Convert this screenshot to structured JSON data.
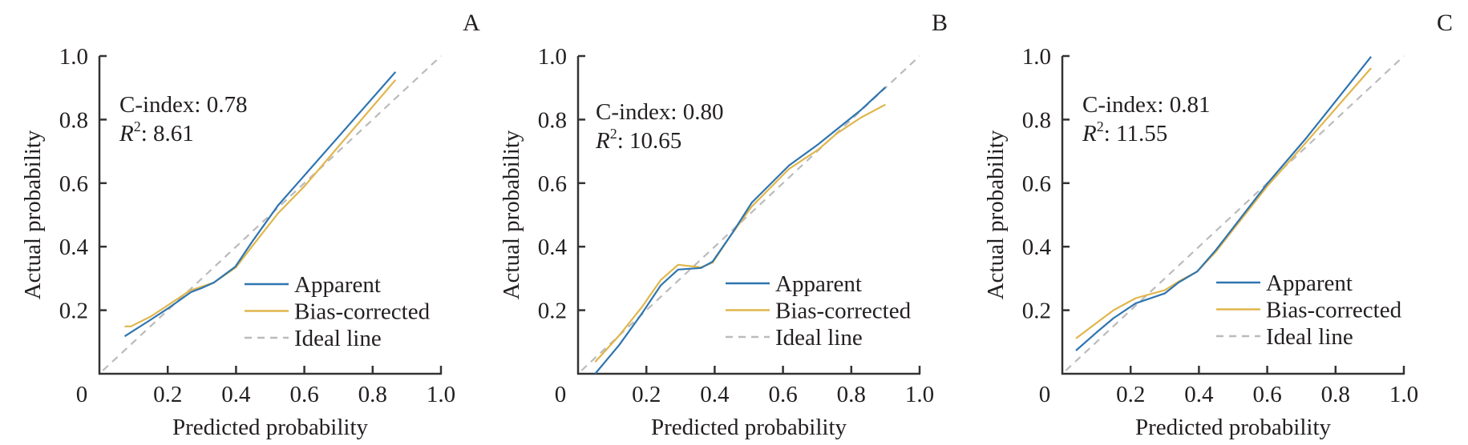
{
  "colors": {
    "apparent": "#2e75b0",
    "bias_corrected": "#e0b64c",
    "ideal": "#bbbbbb",
    "axis": "#333333"
  },
  "legend": [
    "Apparent",
    "Bias-corrected",
    "Ideal line"
  ],
  "chart_data": [
    {
      "type": "line",
      "panel": "A",
      "xlabel": "Predicted probability",
      "ylabel": "Actual probability",
      "xlim": [
        0,
        1.0
      ],
      "ylim": [
        0,
        1.0
      ],
      "xticks": [
        "0.2",
        "0.4",
        "0.6",
        "0.8",
        "1.0"
      ],
      "yticks": [
        "0.2",
        "0.4",
        "0.6",
        "0.8",
        "1.0"
      ],
      "origin_label": "0",
      "annotation": {
        "cindex": "C-index: 0.78",
        "r2_symbol": "R",
        "r2_sup": "2",
        "r2_value": ": 8.61"
      },
      "legend_position": "bottom-right",
      "series": [
        {
          "name": "Apparent",
          "points": [
            [
              0.074,
              0.118
            ],
            [
              0.15,
              0.17
            ],
            [
              0.2,
              0.205
            ],
            [
              0.268,
              0.257
            ],
            [
              0.3,
              0.27
            ],
            [
              0.335,
              0.287
            ],
            [
              0.398,
              0.337
            ],
            [
              0.45,
              0.42
            ],
            [
              0.523,
              0.53
            ],
            [
              0.6,
              0.624
            ],
            [
              0.7,
              0.746
            ],
            [
              0.867,
              0.95
            ]
          ]
        },
        {
          "name": "Bias-corrected",
          "points": [
            [
              0.074,
              0.149
            ],
            [
              0.092,
              0.149
            ],
            [
              0.15,
              0.18
            ],
            [
              0.2,
              0.215
            ],
            [
              0.265,
              0.262
            ],
            [
              0.335,
              0.287
            ],
            [
              0.4,
              0.335
            ],
            [
              0.45,
              0.405
            ],
            [
              0.523,
              0.505
            ],
            [
              0.6,
              0.59
            ],
            [
              0.867,
              0.925
            ]
          ]
        },
        {
          "name": "Ideal line",
          "points": [
            [
              0.01,
              0.01
            ],
            [
              1.0,
              1.0
            ]
          ]
        }
      ]
    },
    {
      "type": "line",
      "panel": "B",
      "xlabel": "Predicted probability",
      "ylabel": "Actual probability",
      "xlim": [
        0,
        1.0
      ],
      "ylim": [
        0,
        1.0
      ],
      "xticks": [
        "0.2",
        "0.4",
        "0.6",
        "0.8",
        "1.0"
      ],
      "yticks": [
        "0.2",
        "0.4",
        "0.6",
        "0.8",
        "1.0"
      ],
      "origin_label": "0",
      "annotation": {
        "cindex": "C-index: 0.80",
        "r2_symbol": "R",
        "r2_sup": "2",
        "r2_value": ": 10.65"
      },
      "legend_position": "bottom-right",
      "series": [
        {
          "name": "Apparent",
          "points": [
            [
              0.05,
              0.0
            ],
            [
              0.12,
              0.09
            ],
            [
              0.187,
              0.19
            ],
            [
              0.242,
              0.278
            ],
            [
              0.293,
              0.328
            ],
            [
              0.36,
              0.333
            ],
            [
              0.394,
              0.353
            ],
            [
              0.45,
              0.44
            ],
            [
              0.509,
              0.539
            ],
            [
              0.618,
              0.656
            ],
            [
              0.704,
              0.723
            ],
            [
              0.828,
              0.83
            ],
            [
              0.9,
              0.902
            ]
          ]
        },
        {
          "name": "Bias-corrected",
          "points": [
            [
              0.05,
              0.037
            ],
            [
              0.12,
              0.12
            ],
            [
              0.187,
              0.21
            ],
            [
              0.242,
              0.295
            ],
            [
              0.293,
              0.343
            ],
            [
              0.36,
              0.335
            ],
            [
              0.394,
              0.35
            ],
            [
              0.45,
              0.44
            ],
            [
              0.509,
              0.527
            ],
            [
              0.618,
              0.645
            ],
            [
              0.704,
              0.706
            ],
            [
              0.757,
              0.756
            ],
            [
              0.828,
              0.806
            ],
            [
              0.9,
              0.847
            ]
          ]
        },
        {
          "name": "Ideal line",
          "points": [
            [
              0.01,
              0.01
            ],
            [
              1.0,
              1.0
            ]
          ]
        }
      ]
    },
    {
      "type": "line",
      "panel": "C",
      "xlabel": "Predicted probability",
      "ylabel": "Actual probability",
      "xlim": [
        0,
        1.0
      ],
      "ylim": [
        0,
        1.0
      ],
      "xticks": [
        "0.2",
        "0.4",
        "0.6",
        "0.8",
        "1.0"
      ],
      "yticks": [
        "0.2",
        "0.4",
        "0.6",
        "0.8",
        "1.0"
      ],
      "origin_label": "0",
      "annotation": {
        "cindex": "C-index: 0.81",
        "r2_symbol": "R",
        "r2_sup": "2",
        "r2_value": ": 11.55"
      },
      "legend_position": "bottom-right",
      "series": [
        {
          "name": "Apparent",
          "points": [
            [
              0.04,
              0.073
            ],
            [
              0.1,
              0.13
            ],
            [
              0.15,
              0.175
            ],
            [
              0.215,
              0.222
            ],
            [
              0.3,
              0.253
            ],
            [
              0.34,
              0.287
            ],
            [
              0.395,
              0.322
            ],
            [
              0.45,
              0.39
            ],
            [
              0.599,
              0.597
            ],
            [
              0.716,
              0.744
            ],
            [
              0.904,
              0.998
            ]
          ]
        },
        {
          "name": "Bias-corrected",
          "points": [
            [
              0.04,
              0.111
            ],
            [
              0.1,
              0.16
            ],
            [
              0.15,
              0.2
            ],
            [
              0.215,
              0.238
            ],
            [
              0.3,
              0.263
            ],
            [
              0.34,
              0.29
            ],
            [
              0.395,
              0.322
            ],
            [
              0.45,
              0.385
            ],
            [
              0.599,
              0.589
            ],
            [
              0.716,
              0.731
            ],
            [
              0.904,
              0.962
            ]
          ]
        },
        {
          "name": "Ideal line",
          "points": [
            [
              0.01,
              0.01
            ],
            [
              1.0,
              1.0
            ]
          ]
        }
      ]
    }
  ]
}
